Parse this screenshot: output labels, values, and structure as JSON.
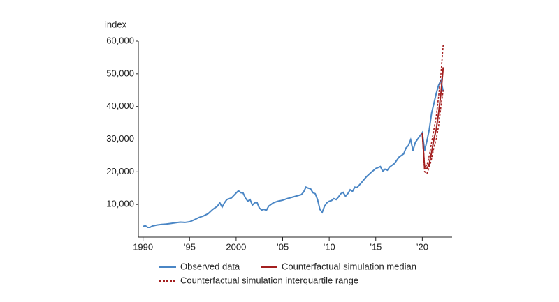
{
  "chart_data": {
    "type": "line",
    "y_label": "index",
    "xlim": [
      1989.5,
      2023.2
    ],
    "ylim": [
      0,
      60000
    ],
    "xticks": [
      {
        "value": 1990,
        "label": "1990"
      },
      {
        "value": 1995,
        "label": "’95"
      },
      {
        "value": 2000,
        "label": "2000"
      },
      {
        "value": 2005,
        "label": "’05"
      },
      {
        "value": 2010,
        "label": "’10"
      },
      {
        "value": 2015,
        "label": "’15"
      },
      {
        "value": 2020,
        "label": "’20"
      }
    ],
    "yticks": [
      {
        "value": 10000,
        "label": "10,000"
      },
      {
        "value": 20000,
        "label": "20,000"
      },
      {
        "value": 30000,
        "label": "30,000"
      },
      {
        "value": 40000,
        "label": "40,000"
      },
      {
        "value": 50000,
        "label": "50,000"
      },
      {
        "value": 60000,
        "label": "60,000"
      }
    ],
    "series": [
      {
        "name": "Observed data",
        "color": "#4a86c5",
        "x": [
          1990,
          1990.25,
          1990.5,
          1990.75,
          1991,
          1991.5,
          1992,
          1992.5,
          1993,
          1993.5,
          1994,
          1994.5,
          1995,
          1995.5,
          1996,
          1996.5,
          1997,
          1997.5,
          1998,
          1998.25,
          1998.5,
          1998.75,
          1999,
          1999.5,
          2000,
          2000.25,
          2000.5,
          2000.75,
          2001,
          2001.25,
          2001.5,
          2001.75,
          2002,
          2002.25,
          2002.5,
          2002.75,
          2003,
          2003.25,
          2003.5,
          2004,
          2004.5,
          2005,
          2005.5,
          2006,
          2006.5,
          2007,
          2007.25,
          2007.5,
          2007.75,
          2008,
          2008.25,
          2008.5,
          2008.75,
          2009,
          2009.25,
          2009.5,
          2009.75,
          2010,
          2010.25,
          2010.5,
          2010.75,
          2011,
          2011.25,
          2011.5,
          2011.75,
          2012,
          2012.25,
          2012.5,
          2012.75,
          2013,
          2013.5,
          2014,
          2014.5,
          2015,
          2015.5,
          2015.75,
          2016,
          2016.25,
          2016.5,
          2017,
          2017.5,
          2018,
          2018.25,
          2018.5,
          2018.75,
          2019,
          2019.25,
          2019.5,
          2019.75,
          2020,
          2020.25,
          2020.5,
          2020.75,
          2021,
          2021.25,
          2021.5,
          2021.75,
          2022,
          2022.25
        ],
        "values": [
          3300,
          3500,
          3000,
          3000,
          3400,
          3700,
          3900,
          4000,
          4200,
          4400,
          4600,
          4500,
          4700,
          5300,
          6000,
          6500,
          7200,
          8500,
          9500,
          10500,
          9200,
          10500,
          11500,
          12000,
          13500,
          14200,
          13600,
          13500,
          12000,
          11000,
          11500,
          9800,
          10500,
          10600,
          8900,
          8300,
          8500,
          8200,
          9500,
          10500,
          11000,
          11300,
          11800,
          12200,
          12600,
          13000,
          13800,
          15300,
          15000,
          14800,
          13600,
          13300,
          11500,
          8500,
          7600,
          9500,
          10500,
          11000,
          11200,
          11800,
          11500,
          12300,
          13300,
          13700,
          12500,
          13300,
          14500,
          14000,
          15300,
          15200,
          16800,
          18500,
          19800,
          21000,
          21600,
          20200,
          20800,
          20500,
          21500,
          22500,
          24500,
          25500,
          27300,
          28000,
          29800,
          26500,
          29000,
          30000,
          31000,
          32000,
          26500,
          29500,
          33000,
          38000,
          41000,
          44000,
          46500,
          48000,
          44500
        ]
      },
      {
        "name": "Counterfactual simulation median",
        "color": "#a31f1f",
        "x": [
          2020,
          2020.25,
          2020.5,
          2020.75,
          2021,
          2021.25,
          2021.5,
          2021.75,
          2022,
          2022.25
        ],
        "values": [
          32000,
          21000,
          21000,
          22500,
          26000,
          30000,
          33000,
          38000,
          44000,
          52000
        ]
      },
      {
        "name": "Counterfactual simulation interquartile range",
        "color": "#a31f1f",
        "dashed": true,
        "x": [
          2020,
          2020.25,
          2020.5,
          2020.75,
          2021,
          2021.25,
          2021.5,
          2021.75,
          2022,
          2022.25
        ],
        "upper": [
          32000,
          21500,
          22000,
          25000,
          29000,
          33000,
          37000,
          43000,
          50000,
          59000
        ],
        "lower": [
          32000,
          20000,
          19500,
          21500,
          24000,
          27500,
          30000,
          34000,
          40000,
          45000
        ]
      }
    ]
  }
}
